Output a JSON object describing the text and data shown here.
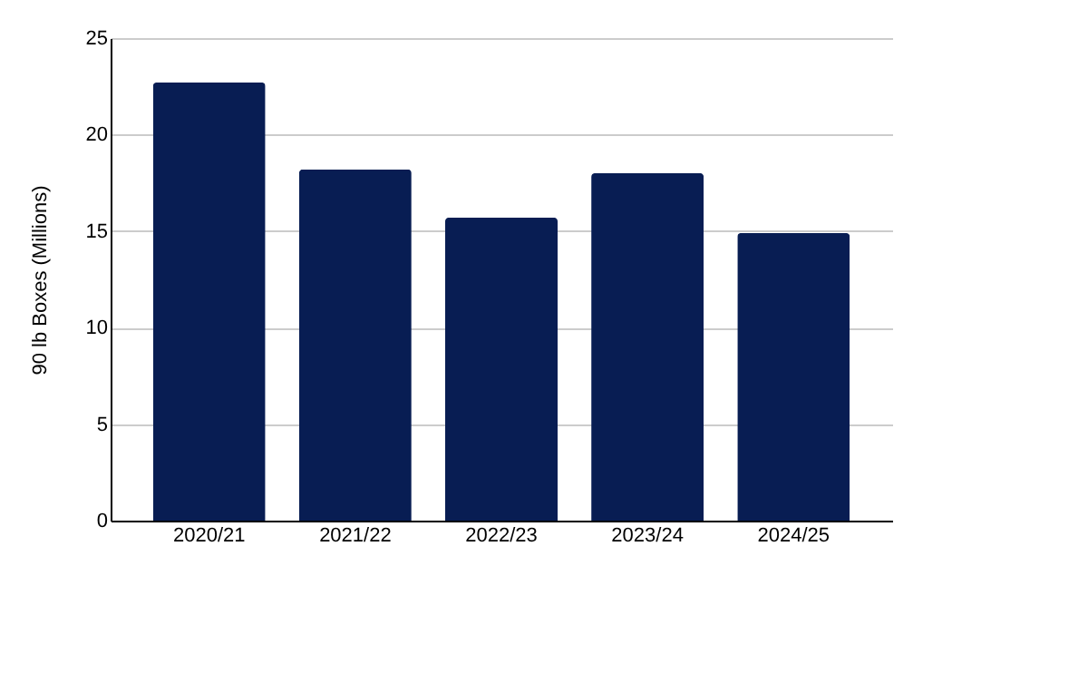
{
  "chart_data": {
    "type": "bar",
    "ylabel": "90 lb Boxes (Millions)",
    "categories": [
      "2020/21",
      "2021/22",
      "2022/23",
      "2023/24",
      "2024/25"
    ],
    "values": [
      22.7,
      18.2,
      15.7,
      18.0,
      14.9
    ],
    "color": "#081d53",
    "ylim": [
      0,
      25
    ],
    "yticks": [
      0,
      5,
      10,
      15,
      20,
      25
    ],
    "grid": "y"
  }
}
